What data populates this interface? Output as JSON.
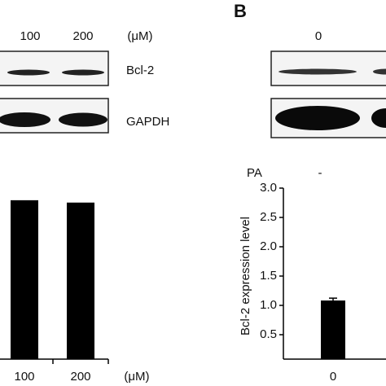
{
  "panel_label": "B",
  "left_blot": {
    "doses": [
      "100",
      "200"
    ],
    "unit": "(μM)",
    "rows": [
      "Bcl-2",
      "GAPDH"
    ]
  },
  "right_blot": {
    "doses": [
      "0"
    ],
    "treatment": "PA",
    "treatment_marks": [
      "-"
    ]
  },
  "chart_data": [
    {
      "type": "bar",
      "categories": [
        "100",
        "200"
      ],
      "x_unit": "(μM)",
      "values": [
        2.71,
        2.67
      ],
      "color": "#000000",
      "ylim": [
        0,
        3.0
      ]
    },
    {
      "type": "bar",
      "categories": [
        "0"
      ],
      "values": [
        1.0
      ],
      "errors": [
        0.04
      ],
      "color": "#000000",
      "ylabel": "Bcl-2 expression level",
      "ylim": [
        0,
        3.0
      ],
      "yticks": [
        {
          "value": 0.5,
          "label": "0.5"
        },
        {
          "value": 1.0,
          "label": "1.0"
        },
        {
          "value": 1.5,
          "label": "1.5"
        },
        {
          "value": 2.0,
          "label": "2.0"
        },
        {
          "value": 2.5,
          "label": "2.5"
        },
        {
          "value": 3.0,
          "label": "3.0"
        }
      ]
    }
  ]
}
